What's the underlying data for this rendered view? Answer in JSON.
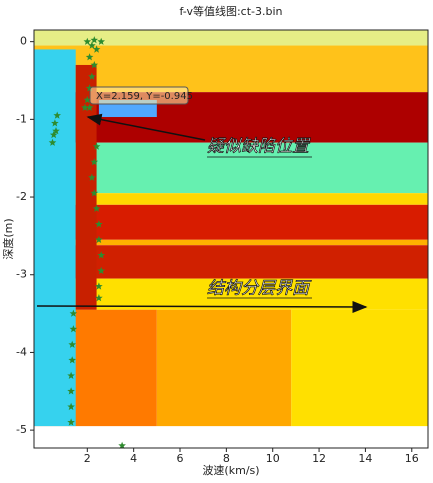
{
  "chart_data": {
    "type": "heatmap-scatter",
    "title": "f-v等值线图:ct-3.bin",
    "x_label": "波速(km/s)",
    "y_label": "深度(m)",
    "xlim": [
      -0.3,
      16.7
    ],
    "ylim": [
      -5.23,
      0.15
    ],
    "xticks": [
      2,
      4,
      6,
      8,
      10,
      12,
      14,
      16
    ],
    "yticks": [
      0,
      -1,
      -2,
      -3,
      -4,
      -5
    ],
    "regions": [
      {
        "x": [
          -0.3,
          16.7
        ],
        "y": [
          0.15,
          -0.05
        ],
        "color": "#e6ee86"
      },
      {
        "x": [
          -0.3,
          16.7
        ],
        "y": [
          -0.05,
          -0.65
        ],
        "color": "#ffc21a"
      },
      {
        "x": [
          -0.3,
          16.7
        ],
        "y": [
          -0.65,
          -1.3
        ],
        "color": "#ad0000"
      },
      {
        "x": [
          -0.3,
          16.7
        ],
        "y": [
          -1.3,
          -1.95
        ],
        "color": "#66f0b0"
      },
      {
        "x": [
          -0.3,
          16.7
        ],
        "y": [
          -1.95,
          -2.1
        ],
        "color": "#ffd800"
      },
      {
        "x": [
          -0.3,
          16.7
        ],
        "y": [
          -2.1,
          -2.55
        ],
        "color": "#d81c00"
      },
      {
        "x": [
          -0.3,
          16.7
        ],
        "y": [
          -2.55,
          -2.62
        ],
        "color": "#ffb000"
      },
      {
        "x": [
          -0.3,
          16.7
        ],
        "y": [
          -2.62,
          -3.05
        ],
        "color": "#d02000"
      },
      {
        "x": [
          -0.3,
          16.7
        ],
        "y": [
          -3.05,
          -3.45
        ],
        "color": "#ffe000"
      },
      {
        "x": [
          -0.3,
          5
        ],
        "y": [
          -3.45,
          -4.95
        ],
        "color": "#ff7a00"
      },
      {
        "x": [
          5,
          10.8
        ],
        "y": [
          -3.45,
          -4.95
        ],
        "color": "#ffa800"
      },
      {
        "x": [
          10.8,
          16.7
        ],
        "y": [
          -3.45,
          -4.95
        ],
        "color": "#ffe000"
      },
      {
        "x": [
          2.5,
          5
        ],
        "y": [
          -0.75,
          -0.97
        ],
        "color": "#50a8ff"
      },
      {
        "x": [
          -0.3,
          1.5
        ],
        "y": [
          -0.1,
          -4.95
        ],
        "color": "#36d2ee"
      },
      {
        "x": [
          1.5,
          2.4
        ],
        "y": [
          -0.3,
          -3.45
        ],
        "color": "#c82000"
      },
      {
        "x": [
          -0.3,
          16.7
        ],
        "y": [
          -4.95,
          -5.23
        ],
        "color": "#ffffff"
      }
    ],
    "x": [
      2.0,
      2.3,
      2.6,
      2.2,
      2.4,
      2.1,
      2.3,
      2.2,
      2.1,
      2.0,
      1.9,
      2.1,
      0.7,
      0.6,
      0.65,
      0.55,
      0.5,
      2.4,
      2.3,
      2.2,
      2.3,
      2.4,
      2.5,
      2.5,
      2.6,
      2.6,
      2.5,
      2.5,
      1.4,
      1.4,
      1.35,
      1.35,
      1.3,
      1.3,
      1.3,
      1.3,
      3.5
    ],
    "y": [
      0,
      0.02,
      0,
      -0.05,
      -0.1,
      -0.2,
      -0.3,
      -0.45,
      -0.6,
      -0.75,
      -0.85,
      -0.85,
      -0.95,
      -1.05,
      -1.15,
      -1.2,
      -1.3,
      -1.35,
      -1.55,
      -1.75,
      -1.95,
      -2.15,
      -2.35,
      -2.55,
      -2.75,
      -2.95,
      -3.15,
      -3.3,
      -3.5,
      -3.7,
      -3.9,
      -4.1,
      -4.3,
      -4.5,
      -4.7,
      -4.9,
      -5.2
    ],
    "marker_color": "#2e8b2e",
    "tooltip": "X=2.159, Y=-0.945",
    "annotations": [
      "疑似缺陷位置",
      "结构分层界面"
    ]
  }
}
